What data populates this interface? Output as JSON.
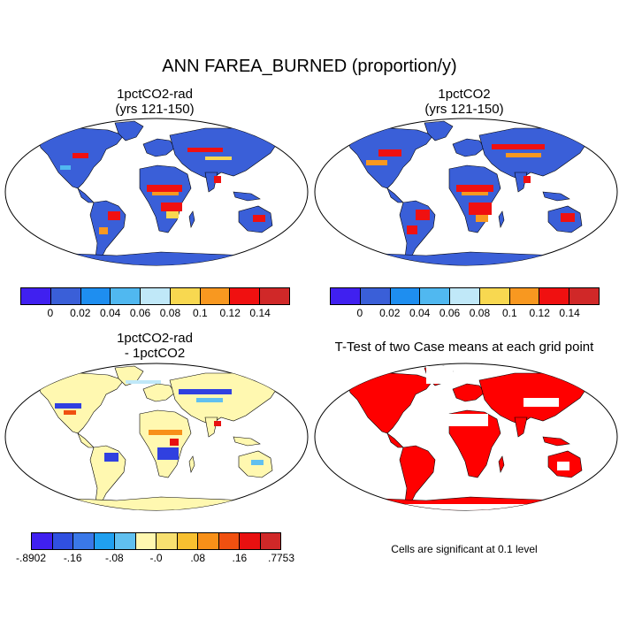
{
  "title": "ANN FAREA_BURNED (proportion/y)",
  "panels": [
    {
      "title_line1": "1pctCO2-rad",
      "title_line2": "(yrs 121-150)"
    },
    {
      "title_line1": "1pctCO2",
      "title_line2": "(yrs 121-150)"
    },
    {
      "title_line1": "1pctCO2-rad",
      "title_line2": "- 1pctCO2"
    },
    {
      "title_line1": "T-Test of two Case means at each grid point",
      "title_line2": ""
    }
  ],
  "colorbar_top": {
    "colors": [
      "#4020f0",
      "#3a5fd8",
      "#1e8ef0",
      "#50b8f0",
      "#c0e8f8",
      "#f8d850",
      "#f89820",
      "#f01010",
      "#d02828"
    ],
    "labels": [
      "0",
      "0.02",
      "0.04",
      "0.06",
      "0.08",
      "0.1",
      "0.12",
      "0.14"
    ]
  },
  "colorbar_diff": {
    "colors": [
      "#4020f0",
      "#3050e0",
      "#3a78e8",
      "#20a0f0",
      "#60c0f0",
      "#fff8b0",
      "#f8e070",
      "#f8c030",
      "#f89018",
      "#f05010",
      "#e81010",
      "#d02828"
    ],
    "labels": [
      "-.8902",
      "-.16",
      "-.08",
      "-.0",
      ".08",
      ".16",
      ".7753"
    ]
  },
  "significance_note": "Cells are significant at 0.1 level",
  "colors": {
    "map_base_blue": "#3a5fd8",
    "map_base_yellow": "#fff8b0",
    "significant_red": "#ff0000",
    "fire_red": "#f01010",
    "fire_orange": "#f89820",
    "fire_yellow": "#f8d850",
    "neg_blue": "#3040e0"
  }
}
